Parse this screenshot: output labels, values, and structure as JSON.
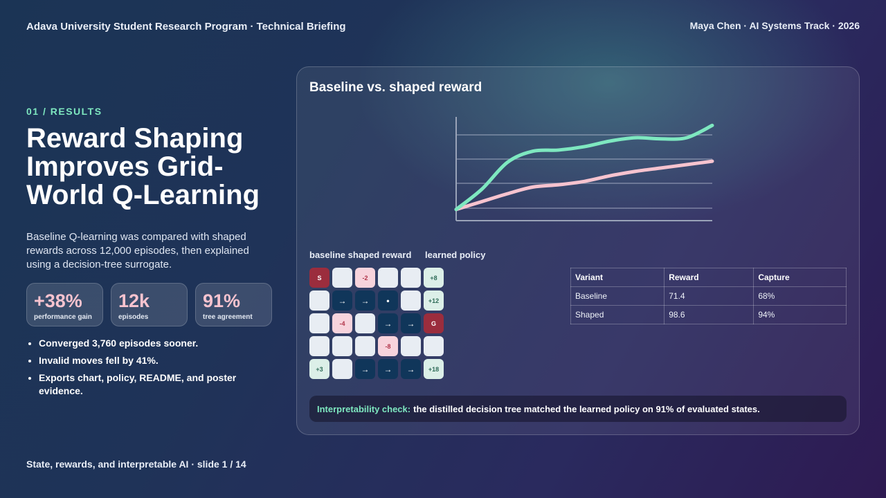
{
  "header": {
    "left": "Adava University Student Research Program · Technical Briefing",
    "right": "Maya Chen · AI Systems Track · 2026"
  },
  "kicker": "01 / RESULTS",
  "title": "Reward Shaping Improves Grid-World Q-Learning",
  "lede": "Baseline Q-learning was compared with shaped rewards across 12,000 episodes, then explained using a decision-tree surrogate.",
  "stats": [
    {
      "value": "+38%",
      "label": "performance gain"
    },
    {
      "value": "12k",
      "label": "episodes"
    },
    {
      "value": "91%",
      "label": "tree agreement"
    }
  ],
  "bullets": [
    "Converged 3,760 episodes sooner.",
    "Invalid moves fell by 41%.",
    "Exports chart, policy, README, and poster evidence."
  ],
  "footer": "State, rewards, and interpretable AI · slide 1 / 14",
  "panel": {
    "title": "Baseline vs. shaped reward",
    "legend_label": "baseline shaped reward",
    "policy_label": "learned policy"
  },
  "chart_data": {
    "type": "line",
    "title": "Baseline vs. shaped reward",
    "xlabel": "",
    "ylabel": "",
    "x": [
      0,
      1,
      2,
      3,
      4,
      5,
      6,
      7,
      8,
      9,
      10
    ],
    "ylim": [
      0,
      1
    ],
    "grid": true,
    "series": [
      {
        "values": [
          0.1,
          0.28,
          0.52,
          0.62,
          0.63,
          0.66,
          0.71,
          0.74,
          0.73,
          0.74,
          0.85
        ],
        "color": "#7ee8c0"
      },
      {
        "values": [
          0.1,
          0.17,
          0.24,
          0.3,
          0.32,
          0.35,
          0.4,
          0.44,
          0.47,
          0.5,
          0.53
        ],
        "color": "#f7c3cf"
      }
    ],
    "colors": {
      "axis": "#9aa3b8",
      "grid": "rgba(210,215,230,0.45)"
    }
  },
  "policy_grid": [
    [
      {
        "t": "start",
        "v": "S"
      },
      {
        "t": "empty",
        "v": ""
      },
      {
        "t": "neg",
        "v": "-2"
      },
      {
        "t": "empty",
        "v": ""
      },
      {
        "t": "empty",
        "v": ""
      },
      {
        "t": "pos",
        "v": "+8"
      }
    ],
    [
      {
        "t": "empty",
        "v": ""
      },
      {
        "t": "arrow",
        "v": "→"
      },
      {
        "t": "arrow",
        "v": "→"
      },
      {
        "t": "arrow",
        "v": "•"
      },
      {
        "t": "empty",
        "v": ""
      },
      {
        "t": "pos",
        "v": "+12"
      }
    ],
    [
      {
        "t": "empty",
        "v": ""
      },
      {
        "t": "neg",
        "v": "-4"
      },
      {
        "t": "empty",
        "v": ""
      },
      {
        "t": "arrow",
        "v": "→"
      },
      {
        "t": "arrow",
        "v": "→"
      },
      {
        "t": "goal",
        "v": "G"
      }
    ],
    [
      {
        "t": "empty",
        "v": ""
      },
      {
        "t": "empty",
        "v": ""
      },
      {
        "t": "empty",
        "v": ""
      },
      {
        "t": "neg",
        "v": "-8"
      },
      {
        "t": "empty",
        "v": ""
      },
      {
        "t": "empty",
        "v": ""
      }
    ],
    [
      {
        "t": "pos",
        "v": "+3"
      },
      {
        "t": "empty",
        "v": ""
      },
      {
        "t": "arrow",
        "v": "→"
      },
      {
        "t": "arrow",
        "v": "→"
      },
      {
        "t": "arrow",
        "v": "→"
      },
      {
        "t": "pos",
        "v": "+18"
      }
    ]
  ],
  "table": {
    "headers": [
      "Variant",
      "Reward",
      "Capture"
    ],
    "rows": [
      [
        "Baseline",
        "71.4",
        "68%"
      ],
      [
        "Shaped",
        "98.6",
        "94%"
      ]
    ]
  },
  "callout": {
    "head": "Interpretability check:",
    "body": "the distilled decision tree matched the learned policy on 91% of evaluated states."
  }
}
